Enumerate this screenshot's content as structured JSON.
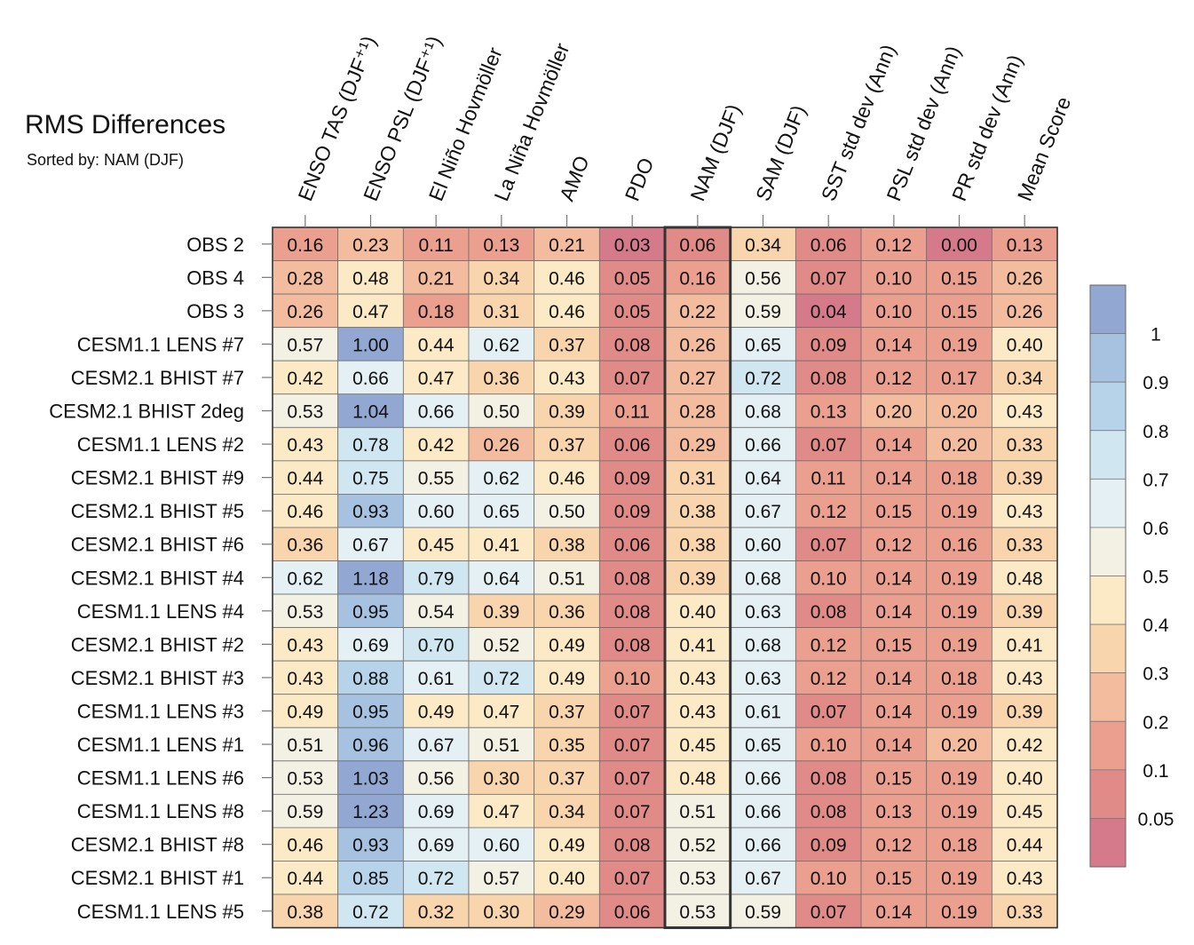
{
  "title": "RMS Differences",
  "subtitle": "Sorted by: NAM (DJF)",
  "chart_data": {
    "type": "heatmap",
    "columns": [
      "ENSO TAS (DJF⁺¹)",
      "ENSO PSL (DJF⁺¹)",
      "El Niño Hovmöller",
      "La Niña Hovmöller",
      "AMO",
      "PDO",
      "NAM (DJF)",
      "SAM (DJF)",
      "SST std dev (Ann)",
      "PSL std dev (Ann)",
      "PR std dev (Ann)",
      "Mean Score"
    ],
    "highlighted_column": "NAM (DJF)",
    "rows": [
      "OBS 2",
      "OBS 4",
      "OBS 3",
      "CESM1.1 LENS #7",
      "CESM2.1 BHIST #7",
      "CESM2.1 BHIST 2deg",
      "CESM1.1 LENS #2",
      "CESM2.1 BHIST #9",
      "CESM2.1 BHIST #5",
      "CESM2.1 BHIST #6",
      "CESM2.1 BHIST #4",
      "CESM1.1 LENS #4",
      "CESM2.1 BHIST #2",
      "CESM2.1 BHIST #3",
      "CESM1.1 LENS #3",
      "CESM1.1 LENS #1",
      "CESM1.1 LENS #6",
      "CESM1.1 LENS #8",
      "CESM2.1 BHIST #8",
      "CESM2.1 BHIST #1",
      "CESM1.1 LENS #5"
    ],
    "values": [
      [
        0.16,
        0.23,
        0.11,
        0.13,
        0.21,
        0.03,
        0.06,
        0.34,
        0.06,
        0.12,
        0.0,
        0.13
      ],
      [
        0.28,
        0.48,
        0.21,
        0.34,
        0.46,
        0.05,
        0.16,
        0.56,
        0.07,
        0.1,
        0.15,
        0.26
      ],
      [
        0.26,
        0.47,
        0.18,
        0.31,
        0.46,
        0.05,
        0.22,
        0.59,
        0.04,
        0.1,
        0.15,
        0.26
      ],
      [
        0.57,
        1.0,
        0.44,
        0.62,
        0.37,
        0.08,
        0.26,
        0.65,
        0.09,
        0.14,
        0.19,
        0.4
      ],
      [
        0.42,
        0.66,
        0.47,
        0.36,
        0.43,
        0.07,
        0.27,
        0.72,
        0.08,
        0.12,
        0.17,
        0.34
      ],
      [
        0.53,
        1.04,
        0.66,
        0.5,
        0.39,
        0.11,
        0.28,
        0.68,
        0.13,
        0.2,
        0.2,
        0.43
      ],
      [
        0.43,
        0.78,
        0.42,
        0.26,
        0.37,
        0.06,
        0.29,
        0.66,
        0.07,
        0.14,
        0.2,
        0.33
      ],
      [
        0.44,
        0.75,
        0.55,
        0.62,
        0.46,
        0.09,
        0.31,
        0.64,
        0.11,
        0.14,
        0.18,
        0.39
      ],
      [
        0.46,
        0.93,
        0.6,
        0.65,
        0.5,
        0.09,
        0.38,
        0.67,
        0.12,
        0.15,
        0.19,
        0.43
      ],
      [
        0.36,
        0.67,
        0.45,
        0.41,
        0.38,
        0.06,
        0.38,
        0.6,
        0.07,
        0.12,
        0.16,
        0.33
      ],
      [
        0.62,
        1.18,
        0.79,
        0.64,
        0.51,
        0.08,
        0.39,
        0.68,
        0.1,
        0.14,
        0.19,
        0.48
      ],
      [
        0.53,
        0.95,
        0.54,
        0.39,
        0.36,
        0.08,
        0.4,
        0.63,
        0.08,
        0.14,
        0.19,
        0.39
      ],
      [
        0.43,
        0.69,
        0.7,
        0.52,
        0.49,
        0.08,
        0.41,
        0.68,
        0.12,
        0.15,
        0.19,
        0.41
      ],
      [
        0.43,
        0.88,
        0.61,
        0.72,
        0.49,
        0.1,
        0.43,
        0.63,
        0.12,
        0.14,
        0.18,
        0.43
      ],
      [
        0.49,
        0.95,
        0.49,
        0.47,
        0.37,
        0.07,
        0.43,
        0.61,
        0.07,
        0.14,
        0.19,
        0.39
      ],
      [
        0.51,
        0.96,
        0.67,
        0.51,
        0.35,
        0.07,
        0.45,
        0.65,
        0.1,
        0.14,
        0.2,
        0.42
      ],
      [
        0.53,
        1.03,
        0.56,
        0.3,
        0.37,
        0.07,
        0.48,
        0.66,
        0.08,
        0.15,
        0.19,
        0.4
      ],
      [
        0.59,
        1.23,
        0.69,
        0.47,
        0.34,
        0.07,
        0.51,
        0.66,
        0.08,
        0.13,
        0.19,
        0.45
      ],
      [
        0.46,
        0.93,
        0.69,
        0.6,
        0.49,
        0.08,
        0.52,
        0.66,
        0.09,
        0.12,
        0.18,
        0.44
      ],
      [
        0.44,
        0.85,
        0.72,
        0.57,
        0.4,
        0.07,
        0.53,
        0.67,
        0.1,
        0.15,
        0.19,
        0.43
      ],
      [
        0.38,
        0.72,
        0.32,
        0.3,
        0.29,
        0.06,
        0.53,
        0.59,
        0.07,
        0.14,
        0.19,
        0.33
      ]
    ],
    "colorbar": {
      "boundaries": [
        0.05,
        0.1,
        0.2,
        0.3,
        0.4,
        0.5,
        0.6,
        0.7,
        0.8,
        0.9,
        1
      ],
      "tick_labels": [
        "1",
        "0.9",
        "0.8",
        "0.7",
        "0.6",
        "0.5",
        "0.4",
        "0.3",
        "0.2",
        "0.1",
        "0.05"
      ],
      "colors_low_to_high": [
        "#d57a8b",
        "#e18b88",
        "#ea9f8f",
        "#f3bc9f",
        "#f9d5ae",
        "#fce9c5",
        "#f3f1e4",
        "#e5f0f5",
        "#d0e6f1",
        "#b7d3e9",
        "#a7c1e0",
        "#92a8d3"
      ]
    }
  }
}
